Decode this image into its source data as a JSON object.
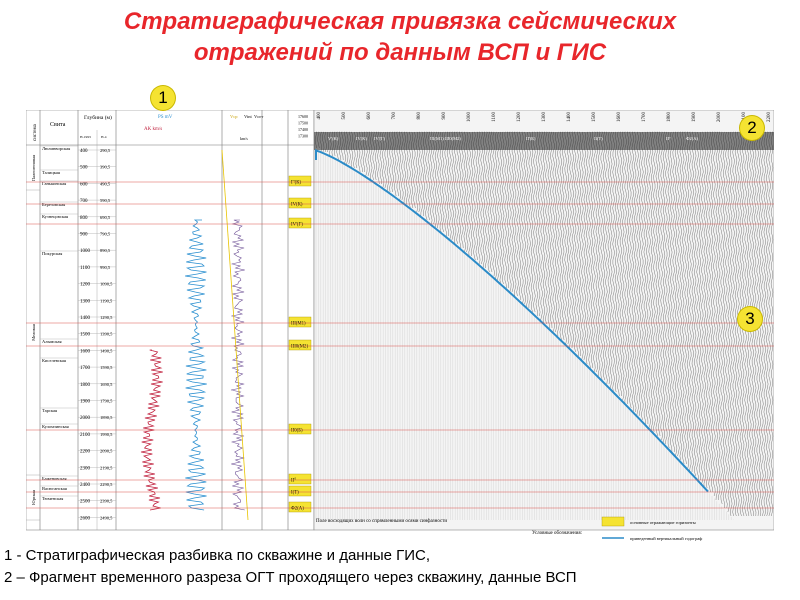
{
  "title": {
    "line1": "Стратиграфическая привязка сейсмических",
    "line2": "отражений по данным ВСП и ГИС"
  },
  "captions": {
    "line1": "1 - Стратиграфическая разбивка по скважине и данные ГИС,",
    "line2": " 2 – Фрагмент временного разреза ОГТ проходящего через скважину, данные ВСП"
  },
  "badges": {
    "b1": "1",
    "b2": "2",
    "b3": "3"
  },
  "log_panel": {
    "header_system": "система",
    "header_suite": "Свита",
    "header_depth": "Глубина (м)",
    "header_sub1": "H-1993",
    "header_sub2": "H-4",
    "ps_label": "PS mV",
    "ak_label": "AK km/s",
    "vint_label": "Vint",
    "vsr_label": "Vср",
    "vogt_label": "Vогт",
    "kms_label": "km/s",
    "systems": [
      "Палеогеновая",
      "Меловая",
      "Юрская"
    ],
    "suites": [
      "Люлинворская",
      "Талицкая",
      "Ганькинская",
      "Березовская",
      "Кузнецовская",
      "Покурская",
      "Алымская",
      "Киселевская",
      "Тарская",
      "Куломзинская",
      "Баженовская",
      "Васюганская",
      "Тюменская"
    ],
    "depths": [
      "400",
      "500",
      "600",
      "700",
      "800",
      "900",
      "1000",
      "1100",
      "1200",
      "1300",
      "1400",
      "1500",
      "1600",
      "1700",
      "1800",
      "1900",
      "2000",
      "2100",
      "2200",
      "2300",
      "2400",
      "2500",
      "2600"
    ],
    "depths2": [
      "290,5",
      "390,5",
      "490,5",
      "590,5",
      "690,5",
      "790,5",
      "890,5",
      "990,5",
      "1090,5",
      "1190,5",
      "1290,5",
      "1390,5",
      "1490,5",
      "1590,5",
      "1690,5",
      "1790,5",
      "1890,5",
      "1990,5",
      "2090,5",
      "2190,5",
      "2290,5",
      "2390,5",
      "2490,5"
    ],
    "horizons": [
      "Г'(К)",
      "IV(К)",
      "IV'(Г)",
      "III(М1)",
      "III0(М2)",
      "II0(Б)",
      "II°",
      "I(Т)",
      "Ф2(А)"
    ]
  },
  "seismic_panel": {
    "trace_numbers": [
      "400",
      "500",
      "600",
      "700",
      "800",
      "900",
      "1000",
      "1100",
      "1200",
      "1300",
      "1400",
      "1500",
      "1600",
      "1700",
      "1800",
      "1900",
      "2000",
      "2100",
      "2200"
    ],
    "line_ids": [
      "17600",
      "17500",
      "17400",
      "17300"
    ],
    "top_horizons": [
      "V'(K)",
      "IV(K)",
      "IV'(Г)",
      "III(M1) III0(M2)",
      "II'(Б)",
      "II(Т)",
      "II°",
      "Ф2(А)"
    ],
    "note": "Поле восходящих волн со спрямленными осями синфазности",
    "legend_title": "Условные обозначения:",
    "legend_item1": "основные отражающие горизонты",
    "legend_item2": "приведенный вертикальный годограф"
  },
  "colors": {
    "title": "#e8262b",
    "ps": "#2a8fd0",
    "ak": "#c0203d",
    "curve": "#2b8bc8",
    "horizon": "#d9534f",
    "badge": "#f5e332"
  }
}
